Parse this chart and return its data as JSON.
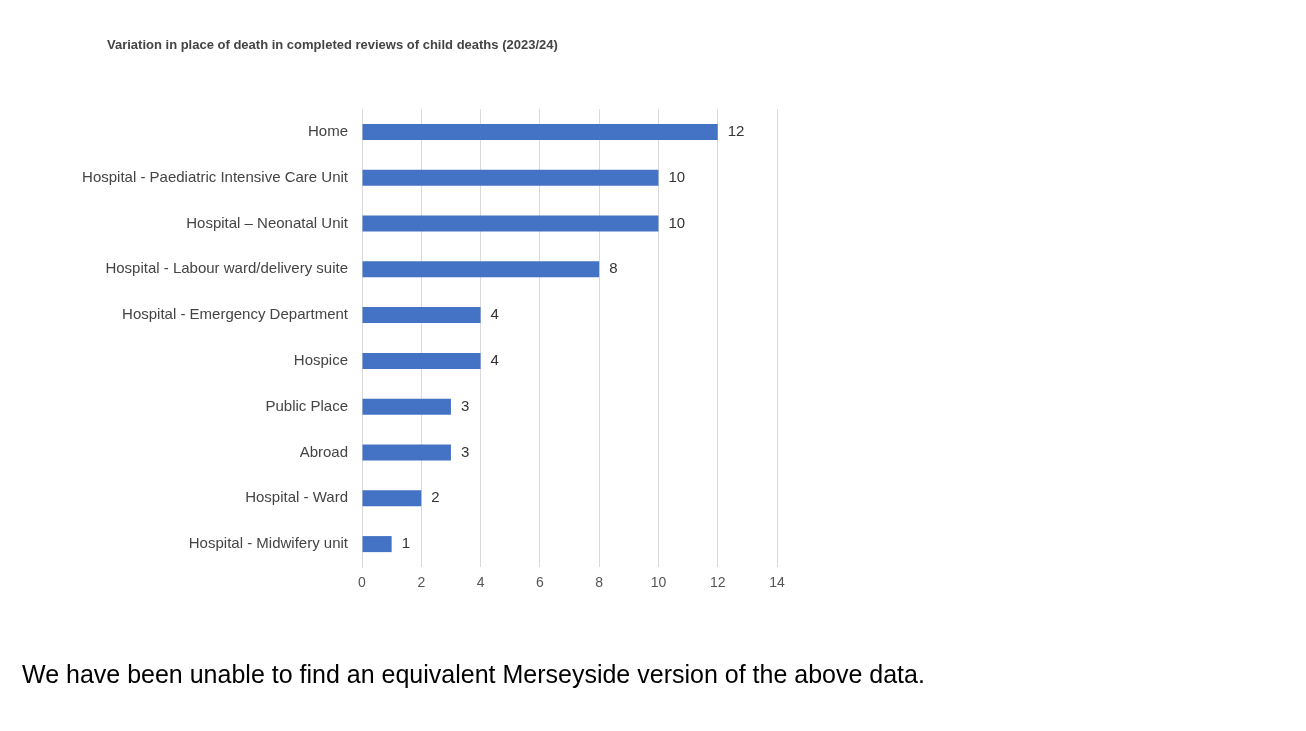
{
  "chart_data": {
    "type": "bar",
    "orientation": "horizontal",
    "title": "Variation in place of death in completed reviews of child deaths (2023/24)",
    "categories": [
      "Home",
      "Hospital - Paediatric Intensive Care Unit",
      "Hospital – Neonatal Unit",
      "Hospital - Labour ward/delivery suite",
      "Hospital - Emergency Department",
      "Hospice",
      "Public Place",
      "Abroad",
      "Hospital - Ward",
      "Hospital - Midwifery unit"
    ],
    "values": [
      12,
      10,
      10,
      8,
      4,
      4,
      3,
      3,
      2,
      1
    ],
    "color": "#4472c4",
    "xlim": [
      0,
      14
    ],
    "xticks": [
      0,
      2,
      4,
      6,
      8,
      10,
      12,
      14
    ],
    "grid": "x",
    "legend": false,
    "data_labels": true,
    "annotations": [
      "We have been unable to find an equivalent Merseyside version of the above data."
    ]
  }
}
